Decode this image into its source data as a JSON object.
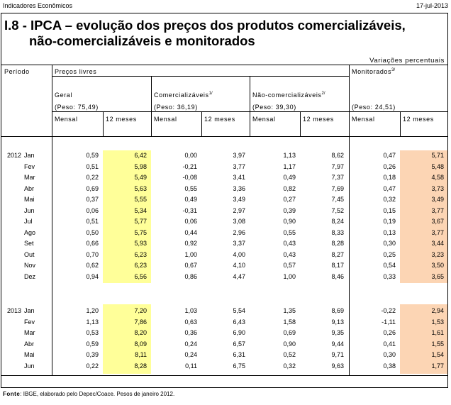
{
  "header": {
    "left": "Indicadores Econômicos",
    "right": "17-jul-2013"
  },
  "title": {
    "line1": "I.8 - IPCA – evolução dos preços dos produtos comercializáveis,",
    "line2": "não-comercializáveis e monitorados"
  },
  "subtitle": "Variações percentuais",
  "columns": {
    "periodo": "Período",
    "precos_livres": "Preços livres",
    "geral": "Geral",
    "geral_peso": "(Peso: 75,49)",
    "comerc": "Comercializáveis",
    "comerc_note": "1/",
    "comerc_peso": "(Peso: 36,19)",
    "naocomerc": "Não-comercializáveis",
    "naocomerc_note": "2/",
    "naocomerc_peso": "(Peso: 39,30)",
    "monitorados": "Monitorados",
    "monit_note": "3/",
    "monit_peso": "(Peso: 24,51)",
    "mensal": "Mensal",
    "doze": "12 meses"
  },
  "rows_2012": [
    {
      "year": "2012",
      "month": "Jan",
      "v": [
        "0,59",
        "6,42",
        "0,00",
        "3,97",
        "1,13",
        "8,62",
        "0,47",
        "5,71"
      ]
    },
    {
      "year": "",
      "month": "Fev",
      "v": [
        "0,51",
        "5,98",
        "-0,21",
        "3,77",
        "1,17",
        "7,97",
        "0,26",
        "5,48"
      ]
    },
    {
      "year": "",
      "month": "Mar",
      "v": [
        "0,22",
        "5,49",
        "-0,08",
        "3,41",
        "0,49",
        "7,37",
        "0,18",
        "4,58"
      ]
    },
    {
      "year": "",
      "month": "Abr",
      "v": [
        "0,69",
        "5,63",
        "0,55",
        "3,36",
        "0,82",
        "7,69",
        "0,47",
        "3,73"
      ]
    },
    {
      "year": "",
      "month": "Mai",
      "v": [
        "0,37",
        "5,55",
        "0,49",
        "3,49",
        "0,27",
        "7,45",
        "0,32",
        "3,49"
      ]
    },
    {
      "year": "",
      "month": "Jun",
      "v": [
        "0,06",
        "5,34",
        "-0,31",
        "2,97",
        "0,39",
        "7,52",
        "0,15",
        "3,77"
      ]
    },
    {
      "year": "",
      "month": "Jul",
      "v": [
        "0,51",
        "5,77",
        "0,06",
        "3,08",
        "0,90",
        "8,24",
        "0,19",
        "3,67"
      ]
    },
    {
      "year": "",
      "month": "Ago",
      "v": [
        "0,50",
        "5,75",
        "0,44",
        "2,96",
        "0,55",
        "8,33",
        "0,13",
        "3,77"
      ]
    },
    {
      "year": "",
      "month": "Set",
      "v": [
        "0,66",
        "5,93",
        "0,92",
        "3,37",
        "0,43",
        "8,28",
        "0,30",
        "3,44"
      ]
    },
    {
      "year": "",
      "month": "Out",
      "v": [
        "0,70",
        "6,23",
        "1,00",
        "4,00",
        "0,43",
        "8,27",
        "0,25",
        "3,23"
      ]
    },
    {
      "year": "",
      "month": "Nov",
      "v": [
        "0,62",
        "6,23",
        "0,67",
        "4,10",
        "0,57",
        "8,17",
        "0,54",
        "3,50"
      ]
    },
    {
      "year": "",
      "month": "Dez",
      "v": [
        "0,94",
        "6,56",
        "0,86",
        "4,47",
        "1,00",
        "8,46",
        "0,33",
        "3,65"
      ]
    }
  ],
  "rows_2013": [
    {
      "year": "2013",
      "month": "Jan",
      "v": [
        "1,20",
        "7,20",
        "1,03",
        "5,54",
        "1,35",
        "8,69",
        "-0,22",
        "2,94"
      ]
    },
    {
      "year": "",
      "month": "Fev",
      "v": [
        "1,13",
        "7,86",
        "0,63",
        "6,43",
        "1,58",
        "9,13",
        "-1,11",
        "1,53"
      ]
    },
    {
      "year": "",
      "month": "Mar",
      "v": [
        "0,53",
        "8,20",
        "0,36",
        "6,90",
        "0,69",
        "9,35",
        "0,26",
        "1,61"
      ]
    },
    {
      "year": "",
      "month": "Abr",
      "v": [
        "0,59",
        "8,09",
        "0,24",
        "6,57",
        "0,90",
        "9,44",
        "0,41",
        "1,55"
      ]
    },
    {
      "year": "",
      "month": "Mai",
      "v": [
        "0,39",
        "8,11",
        "0,24",
        "6,31",
        "0,52",
        "9,71",
        "0,30",
        "1,54"
      ]
    },
    {
      "year": "",
      "month": "Jun",
      "v": [
        "0,22",
        "8,28",
        "0,11",
        "6,75",
        "0,32",
        "9,63",
        "0,38",
        "1,77"
      ]
    }
  ],
  "footer": {
    "label": "Fonte",
    "text": ": IBGE, elaborado pelo Depec/Coace. Pesos de janeiro 2012."
  }
}
